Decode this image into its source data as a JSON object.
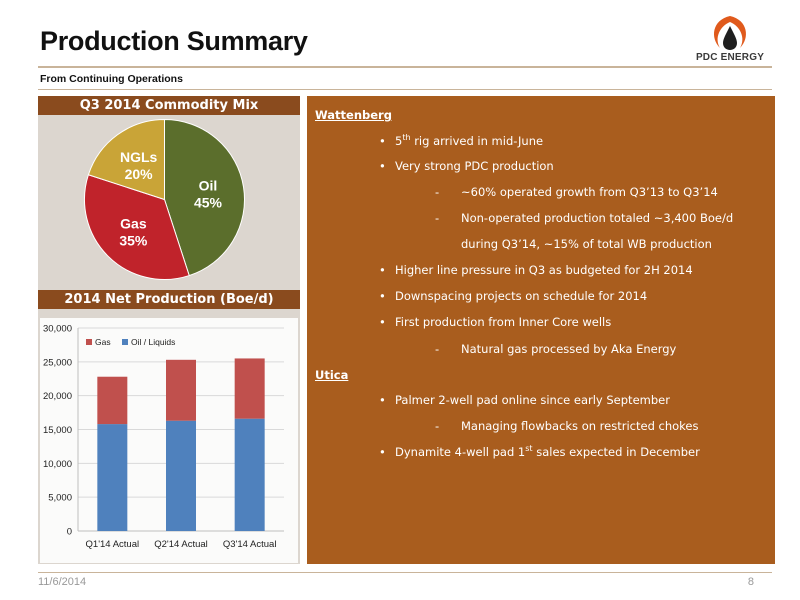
{
  "slide": {
    "title": "Production Summary",
    "subtitle": "From Continuing Operations",
    "date": "11/6/2014",
    "page_number": "8"
  },
  "logo": {
    "text": "PDC ENERGY",
    "colors": {
      "flame": "#e05a1c",
      "drop": "#1f1f1f"
    }
  },
  "pie": {
    "header": "Q3 2014 Commodity Mix",
    "chart_data": {
      "type": "pie",
      "slices": [
        {
          "label": "Oil",
          "value": 45,
          "value_label": "45%",
          "color": "#5b6e2c"
        },
        {
          "label": "Gas",
          "value": 35,
          "value_label": "35%",
          "color": "#c0232b"
        },
        {
          "label": "NGLs",
          "value": 20,
          "value_label": "20%",
          "color": "#c9a437"
        }
      ]
    }
  },
  "bar": {
    "header": "2014 Net Production (Boe/d)",
    "chart_data": {
      "type": "bar",
      "stacked": true,
      "categories": [
        "Q1'14 Actual",
        "Q2'14 Actual",
        "Q3'14 Actual"
      ],
      "series": [
        {
          "name": "Oil / Liquids",
          "values": [
            15800,
            16300,
            16600
          ],
          "color": "#4f81bd"
        },
        {
          "name": "Gas",
          "values": [
            7000,
            9000,
            8900
          ],
          "color": "#c0504d"
        }
      ],
      "legend_order": [
        "Gas",
        "Oil / Liquids"
      ],
      "legend_position": "top-left",
      "ylim": [
        0,
        30000
      ],
      "yticks": [
        0,
        5000,
        10000,
        15000,
        20000,
        25000,
        30000
      ],
      "ytick_labels": [
        "0",
        "5,000",
        "10,000",
        "15,000",
        "20,000",
        "25,000",
        "30,000"
      ],
      "grid": true
    }
  },
  "right": {
    "wattenberg": {
      "heading": "Wattenberg",
      "b1_pre": "5",
      "b1_sup": "th",
      "b1_post": " rig arrived in mid-June",
      "b2": "Very strong PDC production",
      "b2_s1": "~60% operated growth from Q3’13 to Q3’14",
      "b2_s2": "Non-operated production totaled ~3,400 Boe/d",
      "b2_s2_cont": "during Q3’14, ~15% of total WB production",
      "b3": "Higher line pressure in Q3 as budgeted  for 2H 2014",
      "b4": "Downspacing projects on schedule for 2014",
      "b5": "First production from Inner Core wells",
      "b5_s1": "Natural gas processed by Aka Energy"
    },
    "utica": {
      "heading": "Utica",
      "b1": "Palmer 2-well pad online since early September",
      "b1_s1": "Managing flowbacks on restricted chokes",
      "b2_pre": "Dynamite 4-well pad 1",
      "b2_sup": "st",
      "b2_post": " sales expected in December"
    }
  }
}
